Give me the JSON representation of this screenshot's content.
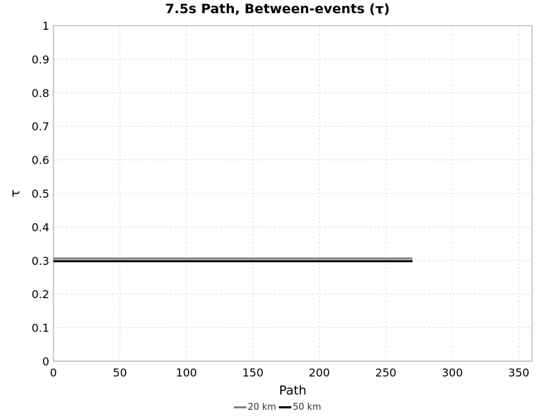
{
  "chart_data": {
    "type": "line",
    "title": "7.5s Path, Between-events (τ)",
    "xlabel": "Path",
    "ylabel": "τ",
    "xlim": [
      0,
      360
    ],
    "ylim": [
      0,
      1
    ],
    "xticks": [
      0,
      50,
      100,
      150,
      200,
      250,
      300,
      350
    ],
    "yticks": [
      0,
      0.1,
      0.2,
      0.3,
      0.4,
      0.5,
      0.6,
      0.7,
      0.8,
      0.9,
      1
    ],
    "ytick_labels": [
      "0",
      "0.1",
      "0.2",
      "0.3",
      "0.4",
      "0.5",
      "0.6",
      "0.7",
      "0.8",
      "0.9",
      "1"
    ],
    "grid": true,
    "legend_position": "bottom-center",
    "series": [
      {
        "name": "20 km",
        "color": "#808080",
        "x": [
          0,
          270
        ],
        "y": [
          0.306,
          0.306
        ]
      },
      {
        "name": "50 km",
        "color": "#000000",
        "x": [
          0,
          270
        ],
        "y": [
          0.298,
          0.298
        ]
      }
    ]
  }
}
